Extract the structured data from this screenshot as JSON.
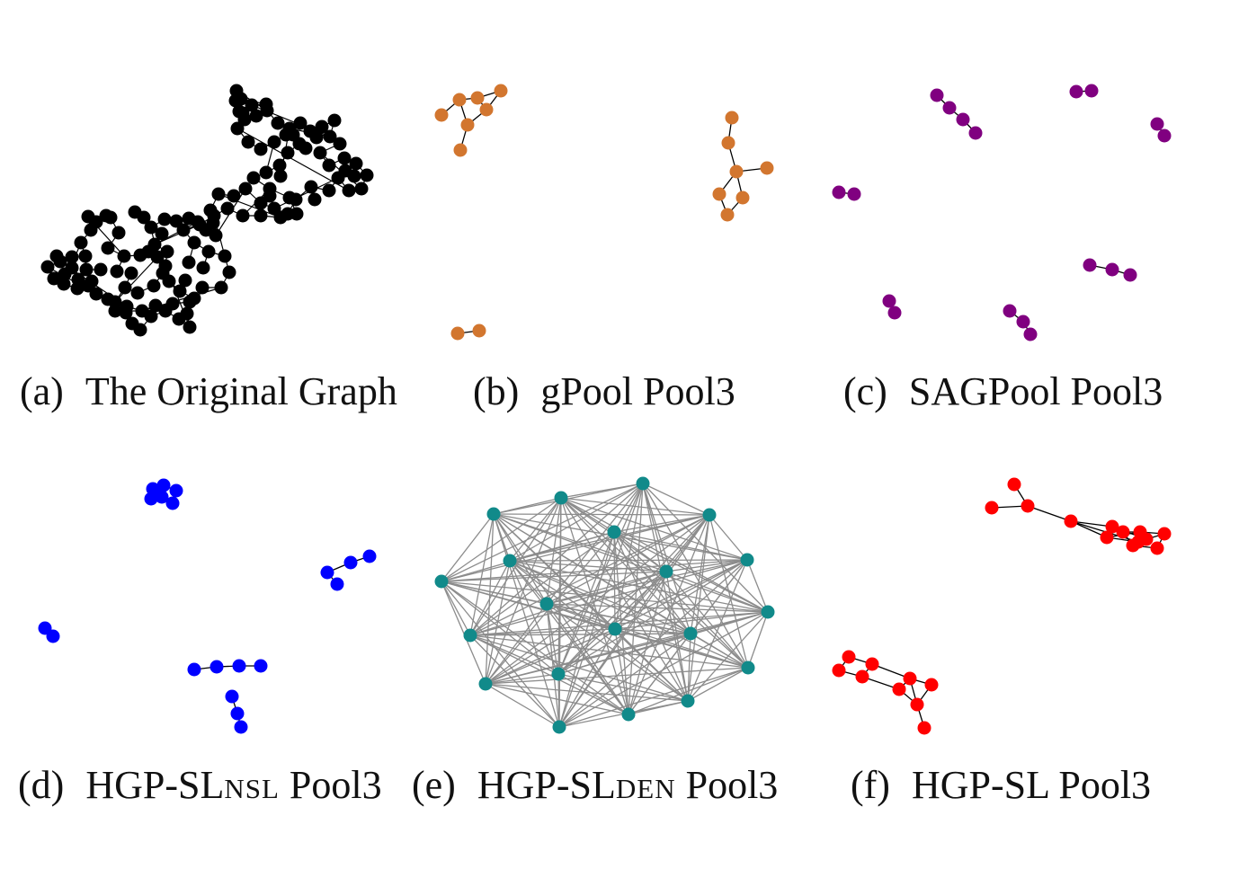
{
  "colors": {
    "panel_a": "#000000",
    "panel_b": "#d2762f",
    "panel_c": "#800080",
    "panel_d": "#0000ff",
    "panel_e": "#118a8a",
    "panel_f": "#ff0000",
    "edge_dark": "#000000",
    "edge_dense": "#8c8c8c"
  },
  "panels": [
    {
      "id": "a",
      "letter": "(a)",
      "text": "The Original Graph",
      "sub": "",
      "after": ""
    },
    {
      "id": "b",
      "letter": "(b)",
      "text": "gPool Pool3",
      "sub": "",
      "after": ""
    },
    {
      "id": "c",
      "letter": "(c)",
      "text": "SAGPool Pool3",
      "sub": "",
      "after": ""
    },
    {
      "id": "d",
      "letter": "(d)",
      "text": "HGP-SL",
      "sub": "NSL",
      "after": " Pool3"
    },
    {
      "id": "e",
      "letter": "(e)",
      "text": "HGP-SL",
      "sub": "DEN",
      "after": " Pool3"
    },
    {
      "id": "f",
      "letter": "(f)",
      "text": "HGP-SL Pool3",
      "sub": "",
      "after": ""
    }
  ]
}
